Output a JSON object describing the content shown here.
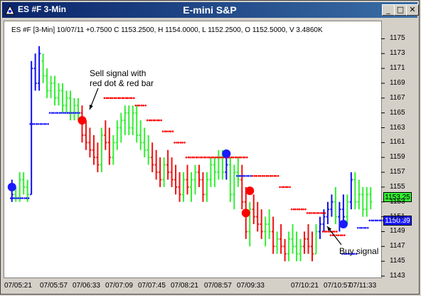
{
  "window": {
    "title": "ES #F 3-Min",
    "center_title": "E-mini S&P",
    "buttons": [
      "_",
      "□",
      "✕"
    ]
  },
  "info_line": "ES #F [3-Min] 10/07/11  +0.7500 C 1153.2500, H 1154.0000, L 1152.2500, O 1152.5000, V 3.4860K",
  "price_tags": {
    "last": "1153.25",
    "stop": "1150.39"
  },
  "annotations": {
    "sell_line1": "Sell signal with",
    "sell_line2": "red dot & red bar",
    "buy": "Buy signal"
  },
  "colors": {
    "up": "#33ee33",
    "down": "#ee1111",
    "blue": "#1010ee",
    "red_dot": "#ff0000",
    "blue_dot": "#1a1aff"
  },
  "chart_data": {
    "type": "candlestick",
    "y_ticks": [
      "1175",
      "1173",
      "1171",
      "1169",
      "1167",
      "1165",
      "1163",
      "1161",
      "1159",
      "1157",
      "1155",
      "1153",
      "1151",
      "1149",
      "1147",
      "1145",
      "1143"
    ],
    "ylim": [
      1143,
      1176
    ],
    "x_ticks": [
      "07/05:21",
      "07/05:57",
      "07/06:33",
      "07/07:09",
      "07/07:45",
      "07/08:21",
      "07/08:57",
      "07/09:33",
      "07/10:21",
      "07/10:57",
      "07/11:33"
    ],
    "signals": [
      {
        "type": "buy",
        "bar": 0,
        "price": 1155.0
      },
      {
        "type": "sell",
        "bar": 18,
        "price": 1164.0
      },
      {
        "type": "buy",
        "bar": 55,
        "price": 1159.5
      },
      {
        "type": "sell",
        "bar": 61,
        "price": 1154.5
      },
      {
        "type": "sell",
        "bar": 60,
        "price": 1151.5
      },
      {
        "type": "buy",
        "bar": 85,
        "price": 1150.0
      }
    ],
    "bars": [
      [
        1155,
        1156,
        1153,
        1154,
        "b"
      ],
      [
        1154,
        1155,
        1153,
        1153.5,
        "g"
      ],
      [
        1153.5,
        1157,
        1153,
        1156,
        "g"
      ],
      [
        1156,
        1157,
        1154,
        1155,
        "g"
      ],
      [
        1155,
        1156,
        1153,
        1154,
        "g"
      ],
      [
        1154,
        1172,
        1154,
        1171,
        "b"
      ],
      [
        1171,
        1173,
        1168,
        1169,
        "b"
      ],
      [
        1169,
        1174,
        1168,
        1173,
        "b"
      ],
      [
        1172,
        1173,
        1169,
        1170,
        "g"
      ],
      [
        1170,
        1171,
        1167,
        1168,
        "g"
      ],
      [
        1168,
        1170,
        1167,
        1169,
        "g"
      ],
      [
        1169,
        1170,
        1166,
        1167,
        "g"
      ],
      [
        1167,
        1169,
        1166,
        1168,
        "g"
      ],
      [
        1168,
        1169,
        1165,
        1166,
        "g"
      ],
      [
        1166,
        1168,
        1165,
        1167,
        "g"
      ],
      [
        1167,
        1168,
        1164,
        1165,
        "g"
      ],
      [
        1165,
        1167,
        1164,
        1166,
        "g"
      ],
      [
        1166,
        1167,
        1164,
        1165,
        "g"
      ],
      [
        1165,
        1166,
        1161,
        1162,
        "r"
      ],
      [
        1162,
        1164,
        1160,
        1161,
        "r"
      ],
      [
        1161,
        1163,
        1159,
        1160,
        "r"
      ],
      [
        1160,
        1162,
        1158,
        1159,
        "r"
      ],
      [
        1159,
        1161,
        1157,
        1158,
        "r"
      ],
      [
        1158,
        1163,
        1157,
        1162,
        "g"
      ],
      [
        1162,
        1164,
        1160,
        1161,
        "r"
      ],
      [
        1161,
        1163,
        1158,
        1159,
        "r"
      ],
      [
        1159,
        1162,
        1158,
        1161,
        "g"
      ],
      [
        1161,
        1164,
        1160,
        1163,
        "g"
      ],
      [
        1163,
        1165,
        1161,
        1164,
        "g"
      ],
      [
        1164,
        1166,
        1162,
        1165,
        "g"
      ],
      [
        1165,
        1166,
        1162,
        1163,
        "g"
      ],
      [
        1163,
        1166,
        1162,
        1165,
        "g"
      ],
      [
        1165,
        1166,
        1161,
        1162,
        "g"
      ],
      [
        1162,
        1164,
        1160,
        1161,
        "g"
      ],
      [
        1161,
        1163,
        1159,
        1160,
        "g"
      ],
      [
        1160,
        1162,
        1158,
        1159,
        "g"
      ],
      [
        1159,
        1161,
        1157,
        1158,
        "r"
      ],
      [
        1158,
        1160,
        1156,
        1157,
        "r"
      ],
      [
        1157,
        1159,
        1155,
        1156,
        "r"
      ],
      [
        1156,
        1159,
        1155,
        1158,
        "g"
      ],
      [
        1158,
        1160,
        1156,
        1157,
        "r"
      ],
      [
        1157,
        1159,
        1155,
        1156,
        "r"
      ],
      [
        1156,
        1158,
        1154,
        1155,
        "r"
      ],
      [
        1155,
        1157,
        1153,
        1154,
        "r"
      ],
      [
        1154,
        1157,
        1153,
        1156,
        "g"
      ],
      [
        1156,
        1158,
        1154,
        1155,
        "r"
      ],
      [
        1155,
        1157,
        1153,
        1156,
        "g"
      ],
      [
        1156,
        1158,
        1154,
        1157,
        "g"
      ],
      [
        1157,
        1158,
        1155,
        1156,
        "r"
      ],
      [
        1156,
        1157,
        1153,
        1154,
        "r"
      ],
      [
        1154,
        1157,
        1153,
        1156,
        "g"
      ],
      [
        1156,
        1159,
        1155,
        1158,
        "g"
      ],
      [
        1158,
        1159,
        1155,
        1157,
        "g"
      ],
      [
        1157,
        1160,
        1156,
        1159,
        "g"
      ],
      [
        1159,
        1160,
        1156,
        1157,
        "g"
      ],
      [
        1157,
        1159,
        1156,
        1158,
        "b"
      ],
      [
        1158,
        1159,
        1153,
        1154,
        "g"
      ],
      [
        1154,
        1158,
        1152,
        1157,
        "g"
      ],
      [
        1157,
        1159,
        1155,
        1156,
        "g"
      ],
      [
        1156,
        1158,
        1152,
        1153,
        "r"
      ],
      [
        1153,
        1155,
        1148,
        1149,
        "r"
      ],
      [
        1149,
        1153,
        1147,
        1152,
        "g"
      ],
      [
        1152,
        1154,
        1150,
        1151,
        "r"
      ],
      [
        1151,
        1153,
        1149,
        1150,
        "r"
      ],
      [
        1150,
        1152,
        1148,
        1149,
        "r"
      ],
      [
        1149,
        1151,
        1147,
        1150,
        "g"
      ],
      [
        1150,
        1152,
        1148,
        1149,
        "g"
      ],
      [
        1149,
        1151,
        1146,
        1147,
        "r"
      ],
      [
        1147,
        1149,
        1146,
        1148,
        "g"
      ],
      [
        1148,
        1150,
        1146,
        1147,
        "r"
      ],
      [
        1147,
        1148,
        1145,
        1146,
        "r"
      ],
      [
        1146,
        1149,
        1145,
        1148,
        "g"
      ],
      [
        1148,
        1150,
        1146,
        1147,
        "g"
      ],
      [
        1147,
        1149,
        1145,
        1146,
        "g"
      ],
      [
        1146,
        1148,
        1145,
        1147,
        "g"
      ],
      [
        1147,
        1149,
        1146,
        1148,
        "r"
      ],
      [
        1148,
        1150,
        1146,
        1147,
        "r"
      ],
      [
        1147,
        1149,
        1145,
        1146,
        "r"
      ],
      [
        1146,
        1150,
        1146,
        1149,
        "g"
      ],
      [
        1149,
        1151,
        1148,
        1150,
        "b"
      ],
      [
        1150,
        1152,
        1149,
        1151,
        "b"
      ],
      [
        1151,
        1153,
        1150,
        1152,
        "b"
      ],
      [
        1152,
        1154,
        1151,
        1153,
        "b"
      ],
      [
        1153,
        1155,
        1150,
        1151,
        "g"
      ],
      [
        1151,
        1153,
        1149,
        1152,
        "b"
      ],
      [
        1152,
        1154,
        1150,
        1151,
        "b"
      ],
      [
        1151,
        1154,
        1150,
        1153,
        "g"
      ],
      [
        1153,
        1157,
        1152,
        1156,
        "b"
      ],
      [
        1156,
        1157,
        1152,
        1153,
        "g"
      ],
      [
        1153,
        1156,
        1152,
        1154,
        "g"
      ],
      [
        1154,
        1155,
        1151,
        1152,
        "g"
      ],
      [
        1152,
        1155,
        1151,
        1154,
        "g"
      ],
      [
        1154,
        1155,
        1152,
        1153,
        "g"
      ]
    ]
  }
}
